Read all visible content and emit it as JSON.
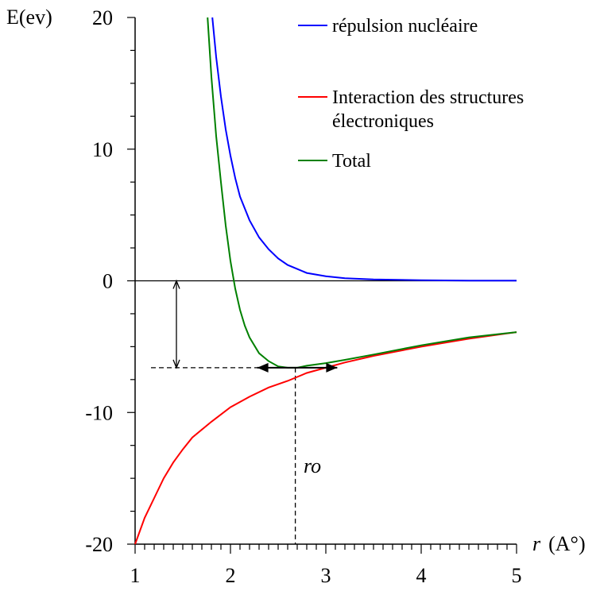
{
  "chart_data": {
    "type": "line",
    "xlabel_var": "r",
    "xlabel_unit": "(A°)",
    "ylabel": "E(ev)",
    "xlim": [
      1,
      5
    ],
    "ylim": [
      -20,
      20
    ],
    "x_ticks": [
      1,
      2,
      3,
      4,
      5
    ],
    "y_ticks": [
      -20,
      -10,
      0,
      10,
      20
    ],
    "x_tick_labels": [
      "1",
      "2",
      "3",
      "4",
      "5"
    ],
    "y_tick_labels": [
      "-20",
      "-10",
      "0",
      "10",
      "20"
    ],
    "grid": false,
    "legend_position": "top-right",
    "series": [
      {
        "name": "répulsion nucléaire",
        "color": "#0000ff",
        "x": [
          1.81,
          1.85,
          1.9,
          1.95,
          2.0,
          2.05,
          2.1,
          2.2,
          2.3,
          2.4,
          2.5,
          2.6,
          2.7,
          2.8,
          3.0,
          3.2,
          3.5,
          4.0,
          4.5,
          5.0
        ],
        "y": [
          20.0,
          17.0,
          14.0,
          11.5,
          9.5,
          7.8,
          6.4,
          4.6,
          3.3,
          2.4,
          1.7,
          1.2,
          0.9,
          0.6,
          0.35,
          0.2,
          0.1,
          0.05,
          0.02,
          0.01
        ]
      },
      {
        "name": "Interaction des structures électroniques",
        "color": "#ff0000",
        "x": [
          1.0,
          1.1,
          1.2,
          1.3,
          1.4,
          1.5,
          1.6,
          1.8,
          2.0,
          2.2,
          2.4,
          2.6,
          2.7,
          2.8,
          3.0,
          3.2,
          3.5,
          4.0,
          4.5,
          5.0
        ],
        "y": [
          -20.0,
          -18.0,
          -16.5,
          -15.0,
          -13.8,
          -12.8,
          -11.9,
          -10.7,
          -9.6,
          -8.8,
          -8.1,
          -7.6,
          -7.3,
          -7.0,
          -6.6,
          -6.2,
          -5.7,
          -5.0,
          -4.4,
          -3.9
        ]
      },
      {
        "name": "Total",
        "color": "#008000",
        "x": [
          1.76,
          1.8,
          1.85,
          1.9,
          1.95,
          2.0,
          2.05,
          2.1,
          2.15,
          2.2,
          2.3,
          2.4,
          2.5,
          2.6,
          2.7,
          2.8,
          3.0,
          3.2,
          3.5,
          4.0,
          4.5,
          5.0
        ],
        "y": [
          20.0,
          15.5,
          11.0,
          7.5,
          4.2,
          1.5,
          -0.6,
          -2.2,
          -3.4,
          -4.3,
          -5.5,
          -6.1,
          -6.5,
          -6.6,
          -6.6,
          -6.45,
          -6.25,
          -6.0,
          -5.6,
          -4.9,
          -4.3,
          -3.9
        ]
      }
    ],
    "annotations": {
      "min_energy": -6.6,
      "ro": 2.68,
      "ro_label": "ro",
      "arrow_horizontal_x": [
        2.28,
        3.12
      ]
    }
  }
}
